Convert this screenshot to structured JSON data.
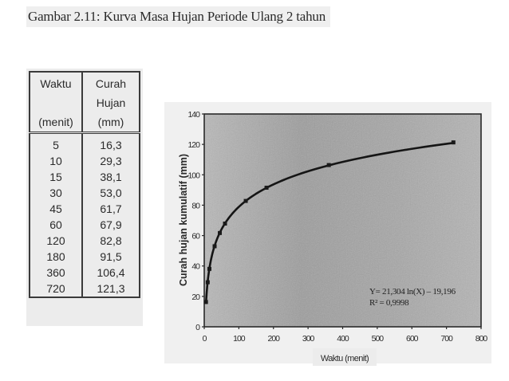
{
  "figure": {
    "title": "Gambar 2.11:  Kurva Masa Hujan Periode Ulang 2 tahun"
  },
  "table": {
    "headers": {
      "col1_line1": "Waktu",
      "col1_line3": "(menit)",
      "col2_line1": "Curah",
      "col2_line2": "Hujan",
      "col2_line3": "(mm)"
    },
    "rows": [
      {
        "waktu": "5",
        "curah": "16,3"
      },
      {
        "waktu": "10",
        "curah": "29,3"
      },
      {
        "waktu": "15",
        "curah": "38,1"
      },
      {
        "waktu": "30",
        "curah": "53,0"
      },
      {
        "waktu": "45",
        "curah": "61,7"
      },
      {
        "waktu": "60",
        "curah": "67,9"
      },
      {
        "waktu": "120",
        "curah": "82,8"
      },
      {
        "waktu": "180",
        "curah": "91,5"
      },
      {
        "waktu": "360",
        "curah": "106,4"
      },
      {
        "waktu": "720",
        "curah": "121,3"
      }
    ]
  },
  "chart_data": {
    "type": "scatter",
    "title": "",
    "xlabel": "Waktu (menit)",
    "ylabel": "Curah hujan kumulatif (mm)",
    "xlim": [
      0,
      800
    ],
    "ylim": [
      0,
      140
    ],
    "x_ticks": [
      0,
      100,
      200,
      300,
      400,
      500,
      600,
      700,
      800
    ],
    "y_ticks": [
      0,
      20,
      40,
      60,
      80,
      100,
      120,
      140
    ],
    "grid": false,
    "legend": null,
    "series": [
      {
        "name": "Curah hujan kumulatif",
        "x": [
          5,
          10,
          15,
          30,
          45,
          60,
          120,
          180,
          360,
          720
        ],
        "y": [
          16.3,
          29.3,
          38.1,
          53.0,
          61.7,
          67.9,
          82.8,
          91.5,
          106.4,
          121.3
        ],
        "marker": "square"
      }
    ],
    "trendline": {
      "type": "logarithmic",
      "a": 21.304,
      "b": -19.196,
      "equation": "Y= 21,304 ln(X) – 19,196",
      "r_squared": "R² = 0,9998"
    },
    "annotations": [
      "Y= 21,304 ln(X) – 19,196",
      "R² = 0,9998"
    ]
  }
}
